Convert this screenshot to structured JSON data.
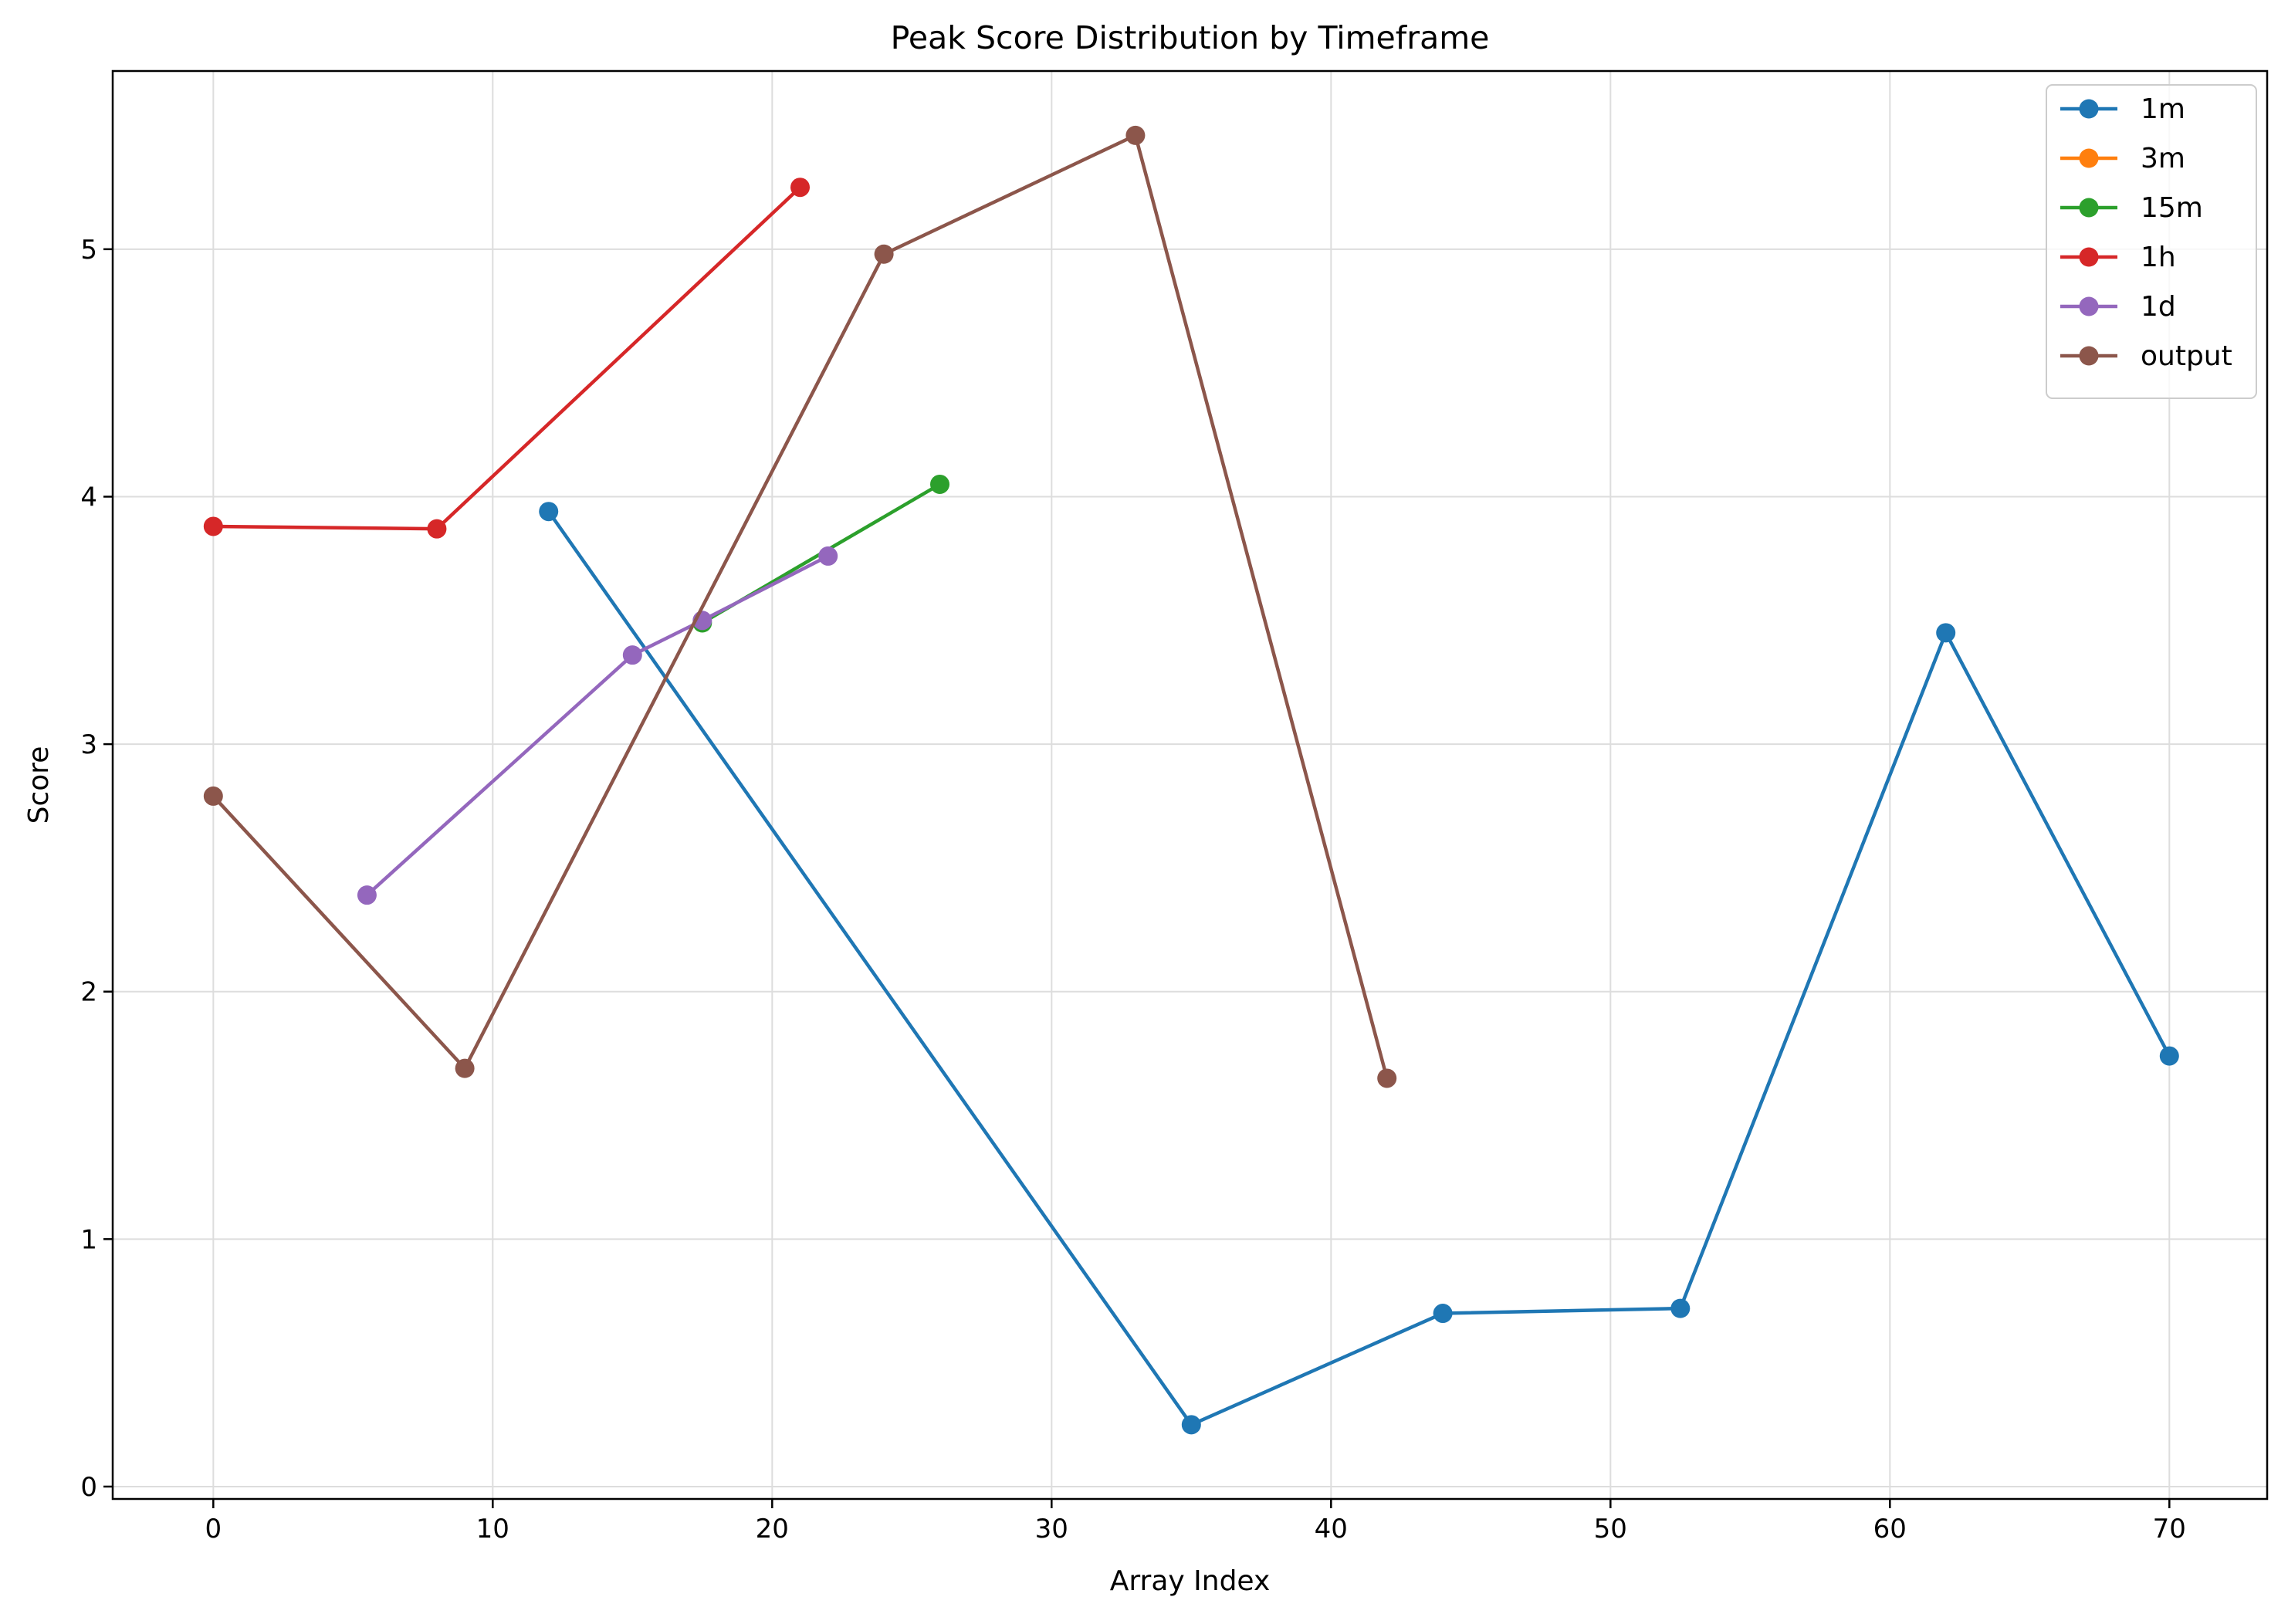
{
  "chart_data": {
    "type": "line",
    "title": "Peak Score Distribution by Timeframe",
    "xlabel": "Array Index",
    "ylabel": "Score",
    "xlim": [
      -3.6,
      73.5
    ],
    "ylim": [
      -0.05,
      5.72
    ],
    "xticks": [
      0,
      10,
      20,
      30,
      40,
      50,
      60,
      70
    ],
    "yticks": [
      0,
      1,
      2,
      3,
      4,
      5
    ],
    "grid": true,
    "legend_position": "top-right",
    "series": [
      {
        "name": "1m",
        "color": "#1f77b4",
        "x": [
          12,
          35,
          44,
          52.5,
          62,
          70
        ],
        "y": [
          3.94,
          0.25,
          0.7,
          0.72,
          3.45,
          1.74
        ]
      },
      {
        "name": "3m",
        "color": "#ff7f0e",
        "x": [],
        "y": []
      },
      {
        "name": "15m",
        "color": "#2ca02c",
        "x": [
          17.5,
          26
        ],
        "y": [
          3.49,
          4.05
        ]
      },
      {
        "name": "1h",
        "color": "#d62728",
        "x": [
          0,
          8,
          21
        ],
        "y": [
          3.88,
          3.87,
          5.25
        ]
      },
      {
        "name": "1d",
        "color": "#9467bd",
        "x": [
          5.5,
          15,
          17.5,
          22
        ],
        "y": [
          2.39,
          3.36,
          3.5,
          3.76
        ]
      },
      {
        "name": "output",
        "color": "#8c564b",
        "x": [
          0,
          9,
          24,
          33,
          42
        ],
        "y": [
          2.79,
          1.69,
          4.98,
          5.46,
          1.65
        ]
      }
    ]
  }
}
